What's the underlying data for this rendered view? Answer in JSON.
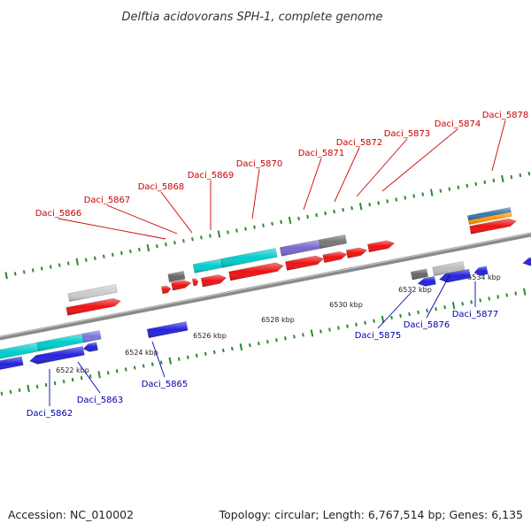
{
  "title": "Delftia acidovorans SPH-1, complete genome",
  "footer": {
    "accession": "Accession: NC_010002",
    "topology": "Topology: circular; Length: 6,767,514 bp; Genes: 6,135"
  },
  "colors": {
    "background": "#ffffff",
    "backbone": "#8a8a8a",
    "tick": "#2a8a2a",
    "top_strand_label": "#cc0000",
    "bottom_strand_label": "#0000aa"
  },
  "chart_data": {
    "type": "genome-track",
    "units": "kbp",
    "tick_labels": [
      "6522 kbp",
      "6524 kbp",
      "6526 kbp",
      "6528 kbp",
      "6530 kbp",
      "6532 kbp",
      "6534 kbp"
    ],
    "genes": [
      {
        "label": "Daci_5862",
        "strand": "bottom",
        "color": "#00cccc"
      },
      {
        "label": "Daci_5863",
        "strand": "bottom",
        "color": "#7777dd"
      },
      {
        "label": "Daci_5865",
        "strand": "bottom",
        "color": "#2222dd"
      },
      {
        "label": "Daci_5866",
        "strand": "top",
        "color": "#ee1111"
      },
      {
        "label": "Daci_5867",
        "strand": "top",
        "color": "#ee1111"
      },
      {
        "label": "Daci_5868",
        "strand": "top",
        "color": "#ee1111"
      },
      {
        "label": "Daci_5869",
        "strand": "top",
        "color": "#00cccc"
      },
      {
        "label": "Daci_5870",
        "strand": "top",
        "color": "#00cccc"
      },
      {
        "label": "Daci_5871",
        "strand": "top",
        "color": "#7766cc"
      },
      {
        "label": "Daci_5872",
        "strand": "top",
        "color": "#777777"
      },
      {
        "label": "Daci_5873",
        "strand": "top",
        "color": "#ee1111"
      },
      {
        "label": "Daci_5874",
        "strand": "top",
        "color": "#ee1111"
      },
      {
        "label": "Daci_5875",
        "strand": "bottom",
        "color": "#666666"
      },
      {
        "label": "Daci_5876",
        "strand": "bottom",
        "color": "#bbbbbb"
      },
      {
        "label": "Daci_5877",
        "strand": "bottom",
        "color": "#2222dd"
      },
      {
        "label": "Daci_5878",
        "strand": "top",
        "color": "#3377bb"
      }
    ]
  }
}
